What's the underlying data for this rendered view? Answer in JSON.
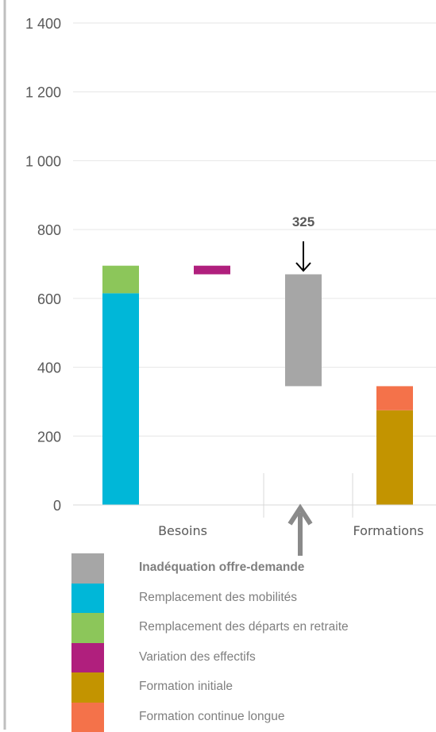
{
  "chart_data": {
    "type": "bar",
    "subtype": "waterfall",
    "ylim": [
      0,
      1400
    ],
    "yticks": [
      {
        "value": 0,
        "label": "0"
      },
      {
        "value": 200,
        "label": "200"
      },
      {
        "value": 400,
        "label": "400"
      },
      {
        "value": 600,
        "label": "600"
      },
      {
        "value": 800,
        "label": "800"
      },
      {
        "value": 1000,
        "label": "1 000"
      },
      {
        "value": 1200,
        "label": "1 200"
      },
      {
        "value": 1400,
        "label": "1 400"
      }
    ],
    "grid": true,
    "category_labels": [
      "Besoins",
      "Formations"
    ],
    "series": [
      {
        "name": "Inadéquation offre-demande",
        "color": "#a6a6a6",
        "segments": [
          {
            "column": 3,
            "from": 345,
            "to": 670
          }
        ]
      },
      {
        "name": "Remplacement des mobilités",
        "color": "#00b7d8",
        "segments": [
          {
            "column": 1,
            "from": 0,
            "to": 615
          }
        ]
      },
      {
        "name": "Remplacement des départs en retraite",
        "color": "#8cc65a",
        "segments": [
          {
            "column": 1,
            "from": 615,
            "to": 695
          }
        ]
      },
      {
        "name": "Variation des effectifs",
        "color": "#b01f7d",
        "segments": [
          {
            "column": 2,
            "from": 670,
            "to": 695
          }
        ]
      },
      {
        "name": "Formation initiale",
        "color": "#c39400",
        "segments": [
          {
            "column": 4,
            "from": 0,
            "to": 275
          }
        ]
      },
      {
        "name": "Formation continue longue",
        "color": "#f4724a",
        "segments": [
          {
            "column": 4,
            "from": 275,
            "to": 345
          }
        ]
      }
    ],
    "annotation": {
      "label": "325",
      "column": 3
    }
  },
  "labels": {
    "besoins": "Besoins",
    "formations": "Formations",
    "annotation": "325"
  },
  "legend": [
    {
      "label": "Inadéquation offre-demande",
      "color": "#a6a6a6",
      "bold": true
    },
    {
      "label": "Remplacement des mobilités",
      "color": "#00b7d8",
      "bold": false
    },
    {
      "label": "Remplacement des départs en retraite",
      "color": "#8cc65a",
      "bold": false
    },
    {
      "label": "Variation des effectifs",
      "color": "#b01f7d",
      "bold": false
    },
    {
      "label": "Formation initiale",
      "color": "#c39400",
      "bold": false
    },
    {
      "label": "Formation continue longue",
      "color": "#f4724a",
      "bold": false
    }
  ]
}
